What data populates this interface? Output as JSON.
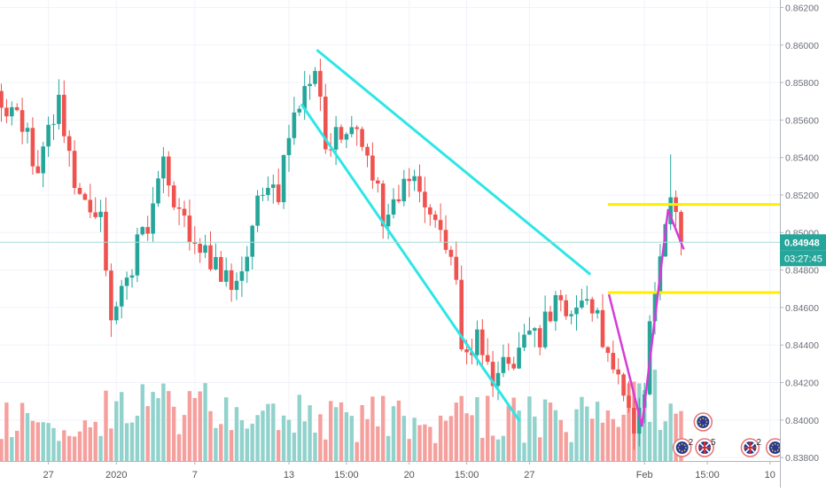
{
  "chart_data": {
    "type": "candlestick",
    "title": "",
    "xlabel": "",
    "ylabel": "",
    "ylim": [
      0.8364,
      0.8624
    ],
    "y_ticks": [
      {
        "value": 0.862,
        "label": "0.86200"
      },
      {
        "value": 0.86,
        "label": "0.86000"
      },
      {
        "value": 0.858,
        "label": "0.85800"
      },
      {
        "value": 0.856,
        "label": "0.85600"
      },
      {
        "value": 0.854,
        "label": "0.85400"
      },
      {
        "value": 0.852,
        "label": "0.85200"
      },
      {
        "value": 0.85,
        "label": "0.85000"
      },
      {
        "value": 0.848,
        "label": "0.84800"
      },
      {
        "value": 0.846,
        "label": "0.84600"
      },
      {
        "value": 0.844,
        "label": "0.84400"
      },
      {
        "value": 0.842,
        "label": "0.84200"
      },
      {
        "value": 0.84,
        "label": "0.84000"
      },
      {
        "value": 0.838,
        "label": "0.83800"
      }
    ],
    "x_ticks": [
      {
        "bar": 10,
        "label": "27"
      },
      {
        "bar": 23,
        "label": "2020"
      },
      {
        "bar": 38,
        "label": "7"
      },
      {
        "bar": 56,
        "label": "13"
      },
      {
        "bar": 67,
        "label": "15:00"
      },
      {
        "bar": 79,
        "label": "20"
      },
      {
        "bar": 90,
        "label": "15:00"
      },
      {
        "bar": 102,
        "label": "27"
      },
      {
        "bar": 124,
        "label": "Feb"
      },
      {
        "bar": 136,
        "label": "15:00"
      },
      {
        "bar": 148,
        "label": "10"
      }
    ],
    "price_path": [
      [
        0,
        0.8572
      ],
      [
        4,
        0.8562
      ],
      [
        8,
        0.8536
      ],
      [
        12,
        0.8566
      ],
      [
        16,
        0.852
      ],
      [
        20,
        0.8512
      ],
      [
        22,
        0.8452
      ],
      [
        24,
        0.847
      ],
      [
        28,
        0.8498
      ],
      [
        32,
        0.8535
      ],
      [
        35,
        0.8505
      ],
      [
        38,
        0.8495
      ],
      [
        42,
        0.848
      ],
      [
        46,
        0.8471
      ],
      [
        50,
        0.8512
      ],
      [
        54,
        0.852
      ],
      [
        56,
        0.8556
      ],
      [
        59,
        0.858
      ],
      [
        61,
        0.8584
      ],
      [
        63,
        0.8548
      ],
      [
        67,
        0.856
      ],
      [
        71,
        0.8548
      ],
      [
        74,
        0.851
      ],
      [
        78,
        0.8527
      ],
      [
        81,
        0.852
      ],
      [
        84,
        0.8505
      ],
      [
        87,
        0.8495
      ],
      [
        89,
        0.8444
      ],
      [
        93,
        0.844
      ],
      [
        95,
        0.8425
      ],
      [
        98,
        0.843
      ],
      [
        101,
        0.8442
      ],
      [
        104,
        0.8445
      ],
      [
        107,
        0.8462
      ],
      [
        109,
        0.846
      ],
      [
        112,
        0.8458
      ],
      [
        115,
        0.8463
      ],
      [
        117,
        0.843
      ],
      [
        120,
        0.8412
      ],
      [
        122,
        0.84
      ],
      [
        124,
        0.842
      ],
      [
        126,
        0.847
      ],
      [
        128,
        0.8512
      ],
      [
        129,
        0.8511
      ],
      [
        131,
        0.8495
      ]
    ],
    "bar_count": 132,
    "current_price": {
      "value": 0.84948,
      "label": "0.84948",
      "countdown": "03:27:45"
    },
    "colors": {
      "up": "#26a69a",
      "down": "#ef5350",
      "vol_up": "#92d2cc",
      "vol_down": "#f5a09d",
      "channel": "#2ee6e6",
      "level": "#ffee00",
      "pattern": "#d63bd6",
      "price_line": "#5dc7c0"
    },
    "drawings": {
      "channel_upper": [
        [
          0.8597,
          61.5
        ],
        [
          0.8478,
          113.5
        ]
      ],
      "channel_lower": [
        [
          0.8568,
          58.5
        ],
        [
          0.84,
          100
        ]
      ],
      "level_high": [
        0.8515,
        117,
        156
      ],
      "level_low": [
        0.8468,
        117,
        156
      ],
      "pattern": [
        [
          0.8467,
          117.2
        ],
        [
          0.8397,
          123.5
        ],
        [
          0.8512,
          128.5
        ],
        [
          0.8491,
          131.5
        ]
      ]
    },
    "event_badges": [
      {
        "bar": 131.2,
        "count": "2",
        "flag": "eu-flag-icon"
      },
      {
        "bar": 135.2,
        "count": "",
        "flag": "eu-flag-icon"
      },
      {
        "bar": 135.5,
        "count": "5",
        "flag": "uk-flag-icon"
      },
      {
        "bar": 144.2,
        "count": "2",
        "flag": "uk-flag-icon"
      },
      {
        "bar": 149,
        "count": "",
        "flag": "eu-flag-icon"
      }
    ]
  }
}
